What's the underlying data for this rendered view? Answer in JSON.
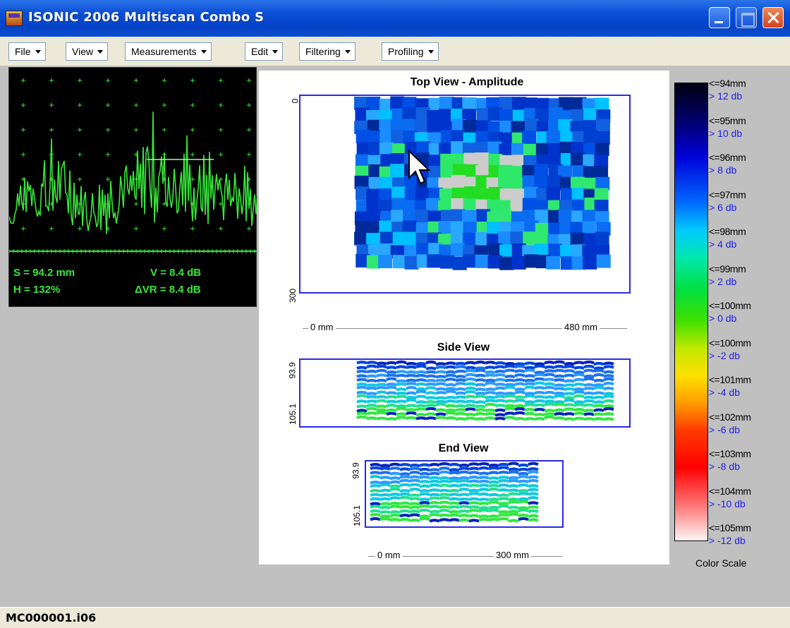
{
  "window": {
    "title": "ISONIC 2006 Multiscan Combo S"
  },
  "menu": [
    {
      "label": "File"
    },
    {
      "label": "View"
    },
    {
      "label": "Measurements"
    },
    {
      "label": "Edit"
    },
    {
      "label": "Filtering"
    },
    {
      "label": "Profiling"
    }
  ],
  "ascan": {
    "s": "S = 94.2 mm",
    "v": "V = 8.4 dB",
    "h": "H = 132%",
    "dvr": "ΔVR = 8.4 dB"
  },
  "views": {
    "top": {
      "title": "Top View - Amplitude",
      "axis_start": "0",
      "axis_end": "300",
      "dim_start": "0 mm",
      "dim_end": "480 mm"
    },
    "side": {
      "title": "Side View",
      "axis_start": "93.9",
      "axis_end": "105.1"
    },
    "end": {
      "title": "End View",
      "axis_start": "93.9",
      "axis_end": "105.1",
      "dim_start": "0 mm",
      "dim_end": "300 mm"
    }
  },
  "color_scale": {
    "caption": "Color Scale",
    "entries": [
      {
        "mm": "<=94mm",
        "db": "> 12 db"
      },
      {
        "mm": "<=95mm",
        "db": "> 10 db"
      },
      {
        "mm": "<=96mm",
        "db": "> 8 db"
      },
      {
        "mm": "<=97mm",
        "db": "> 6 db"
      },
      {
        "mm": "<=98mm",
        "db": "> 4 db"
      },
      {
        "mm": "<=99mm",
        "db": "> 2 db"
      },
      {
        "mm": "<=100mm",
        "db": "> 0 db"
      },
      {
        "mm": "<=100mm",
        "db": "> -2 db"
      },
      {
        "mm": "<=101mm",
        "db": "> -4 db"
      },
      {
        "mm": "<=102mm",
        "db": "> -6 db"
      },
      {
        "mm": "<=103mm",
        "db": "> -8 db"
      },
      {
        "mm": "<=104mm",
        "db": "> -10 db"
      },
      {
        "mm": "<=105mm",
        "db": "> -12 db"
      }
    ]
  },
  "status": {
    "filename": "MC000001.i06"
  }
}
